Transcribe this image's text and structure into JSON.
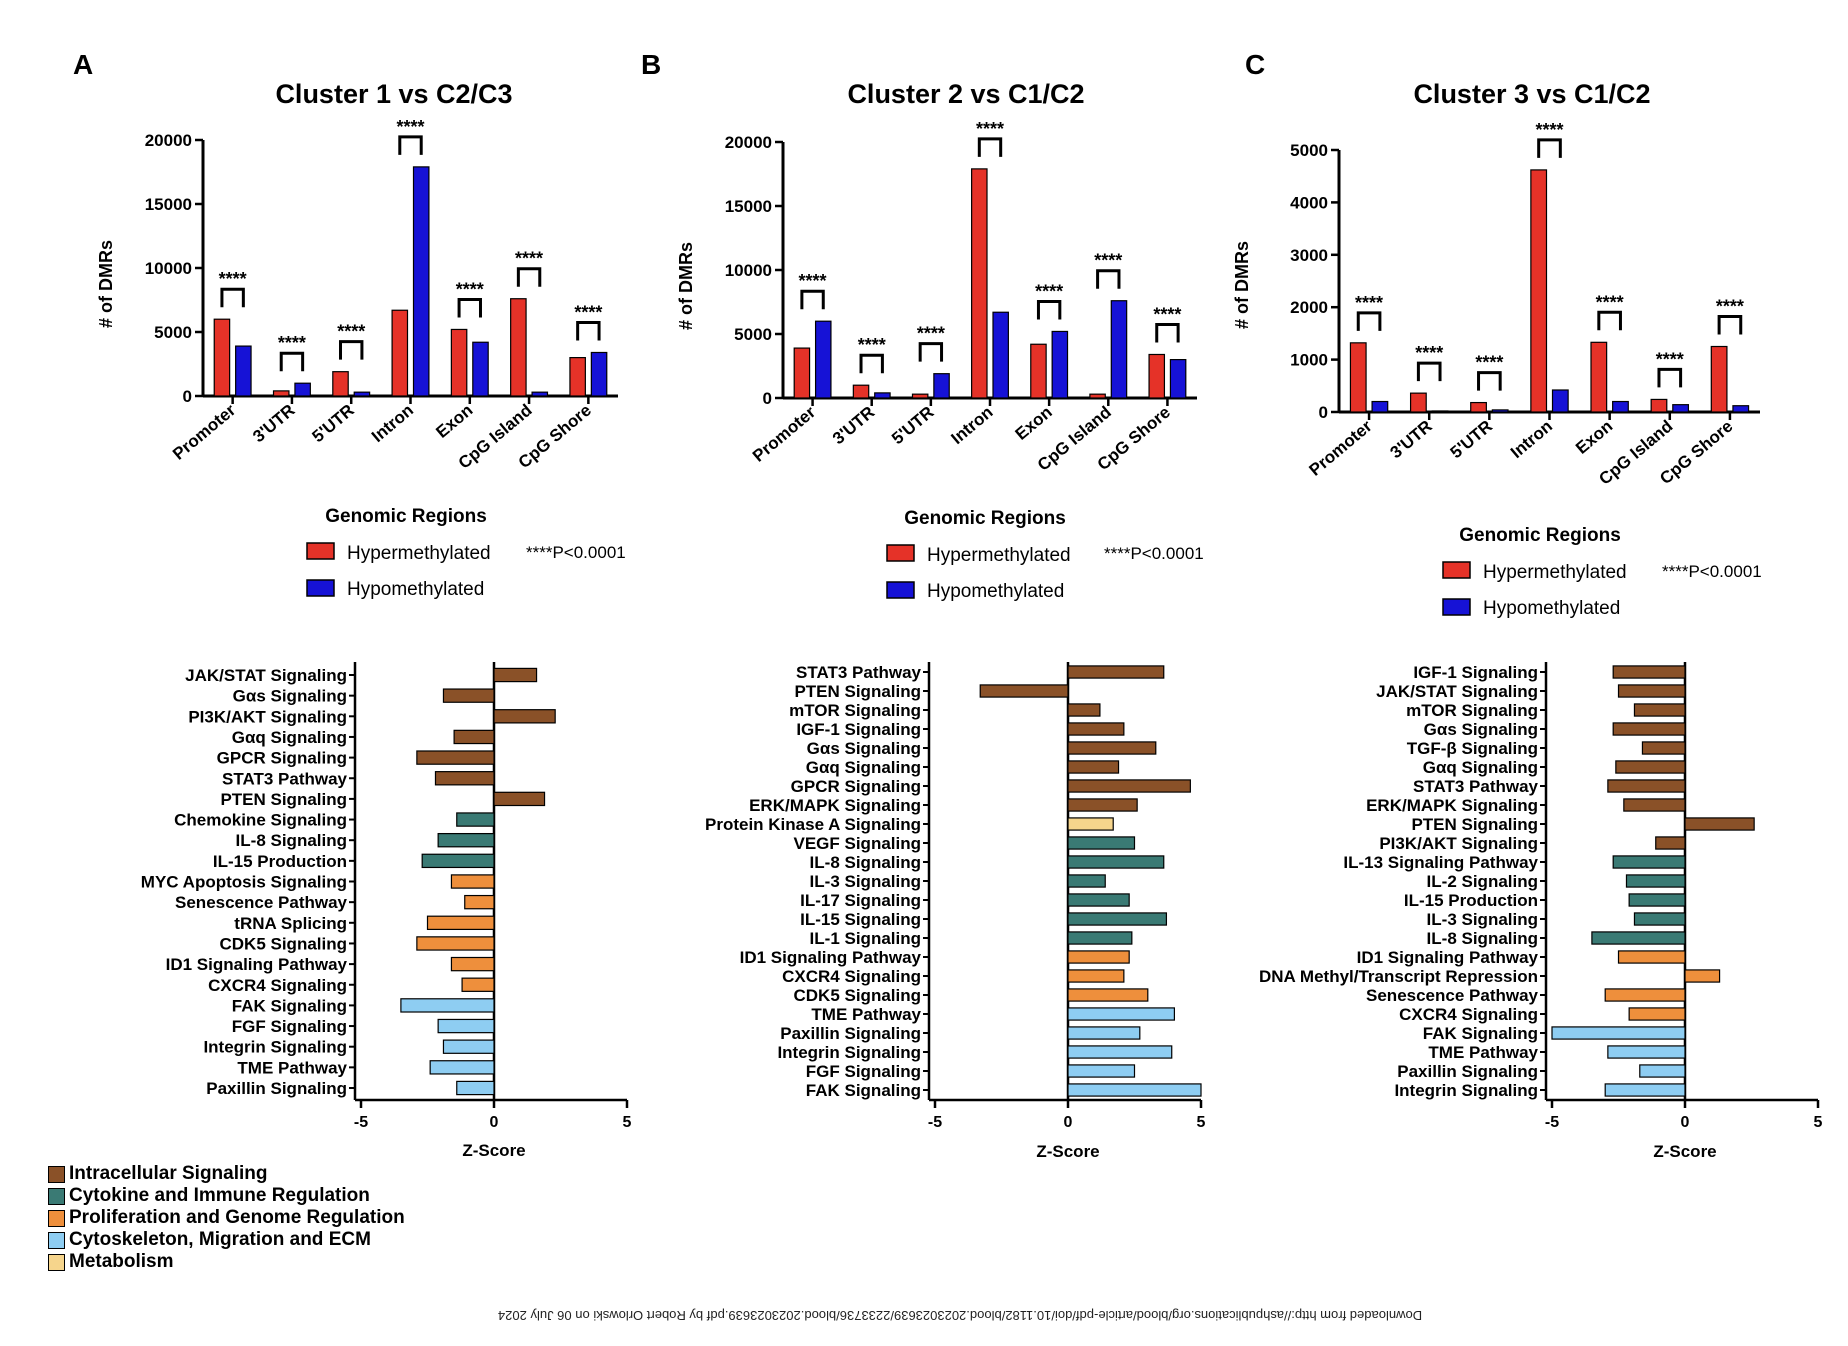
{
  "colors": {
    "hyper": "#e53228",
    "hypo": "#1612d6",
    "intracellular": "#8a5128",
    "cytokine": "#3a7a74",
    "proliferation": "#ee8f3c",
    "cytoskeleton": "#8ecdf2",
    "metabolism": "#f6d58c"
  },
  "category_legend": [
    {
      "key": "intracellular",
      "label": "Intracellular Signaling"
    },
    {
      "key": "cytokine",
      "label": "Cytokine and Immune Regulation"
    },
    {
      "key": "proliferation",
      "label": "Proliferation and Genome Regulation"
    },
    {
      "key": "cytoskeleton",
      "label": "Cytoskeleton, Migration and ECM"
    },
    {
      "key": "metabolism",
      "label": "Metabolism"
    }
  ],
  "footer_text": "Downloaded from http://ashpublications.org/blood/article-pdf/doi/10.1182/blood.2023023639/2233736/blood.2023023639.pdf by Robert Orlowski on 06 July 2024",
  "chart_data": [
    {
      "type": "bar",
      "panel": "A",
      "title": "Cluster 1 vs C2/C3",
      "xlabel": "Genomic Regions",
      "ylabel": "# of DMRs",
      "categories": [
        "Promoter",
        "3'UTR",
        "5'UTR",
        "Intron",
        "Exon",
        "CpG Island",
        "CpG Shore"
      ],
      "ylim": [
        0,
        20000
      ],
      "yticks": [
        0,
        5000,
        10000,
        15000,
        20000
      ],
      "series": [
        {
          "name": "Hypermethylated",
          "color_key": "hyper",
          "values": [
            6000,
            400,
            1900,
            6700,
            5200,
            7600,
            3000
          ]
        },
        {
          "name": "Hypomethylated",
          "color_key": "hypo",
          "values": [
            3900,
            1000,
            300,
            17900,
            4200,
            300,
            3400
          ]
        }
      ],
      "significance": "****",
      "annotation": "****P<0.0001",
      "legend_position": "bottom"
    },
    {
      "type": "bar",
      "panel": "B",
      "title": "Cluster 2 vs C1/C2",
      "xlabel": "Genomic Regions",
      "ylabel": "# of DMRs",
      "categories": [
        "Promoter",
        "3'UTR",
        "5'UTR",
        "Intron",
        "Exon",
        "CpG Island",
        "CpG Shore"
      ],
      "ylim": [
        0,
        20000
      ],
      "yticks": [
        0,
        5000,
        10000,
        15000,
        20000
      ],
      "series": [
        {
          "name": "Hypermethylated",
          "color_key": "hyper",
          "values": [
            3900,
            1000,
            300,
            17900,
            4200,
            300,
            3400
          ]
        },
        {
          "name": "Hypomethylated",
          "color_key": "hypo",
          "values": [
            6000,
            400,
            1900,
            6700,
            5200,
            7600,
            3000
          ]
        }
      ],
      "significance": "****",
      "annotation": "****P<0.0001",
      "legend_position": "bottom"
    },
    {
      "type": "bar",
      "panel": "C",
      "title": "Cluster 3 vs C1/C2",
      "xlabel": "Genomic Regions",
      "ylabel": "# of DMRs",
      "categories": [
        "Promoter",
        "3'UTR",
        "5'UTR",
        "Intron",
        "Exon",
        "CpG Island",
        "CpG Shore"
      ],
      "ylim": [
        0,
        5000
      ],
      "yticks": [
        0,
        1000,
        2000,
        3000,
        4000,
        5000
      ],
      "series": [
        {
          "name": "Hypermethylated",
          "color_key": "hyper",
          "values": [
            1320,
            360,
            180,
            4620,
            1330,
            240,
            1250
          ]
        },
        {
          "name": "Hypomethylated",
          "color_key": "hypo",
          "values": [
            200,
            20,
            40,
            420,
            200,
            140,
            120
          ]
        }
      ],
      "significance": "****",
      "annotation": "****P<0.0001",
      "legend_position": "bottom"
    },
    {
      "type": "bar",
      "orientation": "horizontal",
      "panel": "A",
      "xlabel": "Z-Score",
      "xlim": [
        -5,
        5
      ],
      "xticks": [
        -5,
        0,
        5
      ],
      "categories": [
        "JAK/STAT Signaling",
        "Gαs Signaling",
        "PI3K/AKT Signaling",
        "Gαq Signaling",
        "GPCR Signaling",
        "STAT3 Pathway",
        "PTEN Signaling",
        "Chemokine Signaling",
        "IL-8 Signaling",
        "IL-15 Production",
        "MYC Apoptosis Signaling",
        "Senescence Pathway",
        "tRNA Splicing",
        "CDK5 Signaling",
        "ID1 Signaling Pathway",
        "CXCR4 Signaling",
        "FAK Signaling",
        "FGF Signaling",
        "Integrin Signaling",
        "TME Pathway",
        "Paxillin Signaling"
      ],
      "values": [
        1.6,
        -1.9,
        2.3,
        -1.5,
        -2.9,
        -2.2,
        1.9,
        -1.4,
        -2.1,
        -2.7,
        -1.6,
        -1.1,
        -2.5,
        -2.9,
        -1.6,
        -1.2,
        -3.5,
        -2.1,
        -1.9,
        -2.4,
        -1.4
      ],
      "groups": [
        "intracellular",
        "intracellular",
        "intracellular",
        "intracellular",
        "intracellular",
        "intracellular",
        "intracellular",
        "cytokine",
        "cytokine",
        "cytokine",
        "proliferation",
        "proliferation",
        "proliferation",
        "proliferation",
        "proliferation",
        "proliferation",
        "cytoskeleton",
        "cytoskeleton",
        "cytoskeleton",
        "cytoskeleton",
        "cytoskeleton"
      ]
    },
    {
      "type": "bar",
      "orientation": "horizontal",
      "panel": "B",
      "xlabel": "Z-Score",
      "xlim": [
        -5,
        5
      ],
      "xticks": [
        -5,
        0,
        5
      ],
      "categories": [
        "STAT3 Pathway",
        "PTEN Signaling",
        "mTOR Signaling",
        "IGF-1 Signaling",
        "Gαs Signaling",
        "Gαq Signaling",
        "GPCR Signaling",
        "ERK/MAPK Signaling",
        "Protein Kinase A Signaling",
        "VEGF Signaling",
        "IL-8 Signaling",
        "IL-3 Signaling",
        "IL-17 Signaling",
        "IL-15 Signaling",
        "IL-1 Signaling",
        "ID1 Signaling Pathway",
        "CXCR4 Signaling",
        "CDK5 Signaling",
        "TME Pathway",
        "Paxillin Signaling",
        "Integrin Signaling",
        "FGF Signaling",
        "FAK Signaling"
      ],
      "values": [
        3.6,
        -3.3,
        1.2,
        2.1,
        3.3,
        1.9,
        4.6,
        2.6,
        1.7,
        2.5,
        3.6,
        1.4,
        2.3,
        3.7,
        2.4,
        2.3,
        2.1,
        3.0,
        4.0,
        2.7,
        3.9,
        2.5,
        5.0
      ],
      "groups": [
        "intracellular",
        "intracellular",
        "intracellular",
        "intracellular",
        "intracellular",
        "intracellular",
        "intracellular",
        "intracellular",
        "metabolism",
        "cytokine",
        "cytokine",
        "cytokine",
        "cytokine",
        "cytokine",
        "cytokine",
        "proliferation",
        "proliferation",
        "proliferation",
        "cytoskeleton",
        "cytoskeleton",
        "cytoskeleton",
        "cytoskeleton",
        "cytoskeleton"
      ]
    },
    {
      "type": "bar",
      "orientation": "horizontal",
      "panel": "C",
      "xlabel": "Z-Score",
      "xlim": [
        -5,
        5
      ],
      "xticks": [
        -5,
        0,
        5
      ],
      "categories": [
        "IGF-1 Signaling",
        "JAK/STAT Signaling",
        "mTOR Signaling",
        "Gαs Signaling",
        "TGF-β Signaling",
        "Gαq Signaling",
        "STAT3 Pathway",
        "ERK/MAPK Signaling",
        "PTEN Signaling",
        "PI3K/AKT Signaling",
        "IL-13 Signaling Pathway",
        "IL-2 Signaling",
        "IL-15 Production",
        "IL-3 Signaling",
        "IL-8 Signaling",
        "ID1 Signaling Pathway",
        "DNA Methyl/Transcript Repression",
        "Senescence Pathway",
        "CXCR4 Signaling",
        "FAK Signaling",
        "TME Pathway",
        "Paxillin Signaling",
        "Integrin Signaling"
      ],
      "values": [
        -2.7,
        -2.5,
        -1.9,
        -2.7,
        -1.6,
        -2.6,
        -2.9,
        -2.3,
        2.6,
        -1.1,
        -2.7,
        -2.2,
        -2.1,
        -1.9,
        -3.5,
        -2.5,
        1.3,
        -3.0,
        -2.1,
        -5.0,
        -2.9,
        -1.7,
        -3.0
      ],
      "groups": [
        "intracellular",
        "intracellular",
        "intracellular",
        "intracellular",
        "intracellular",
        "intracellular",
        "intracellular",
        "intracellular",
        "intracellular",
        "intracellular",
        "cytokine",
        "cytokine",
        "cytokine",
        "cytokine",
        "cytokine",
        "proliferation",
        "proliferation",
        "proliferation",
        "proliferation",
        "cytoskeleton",
        "cytoskeleton",
        "cytoskeleton",
        "cytoskeleton"
      ]
    }
  ]
}
